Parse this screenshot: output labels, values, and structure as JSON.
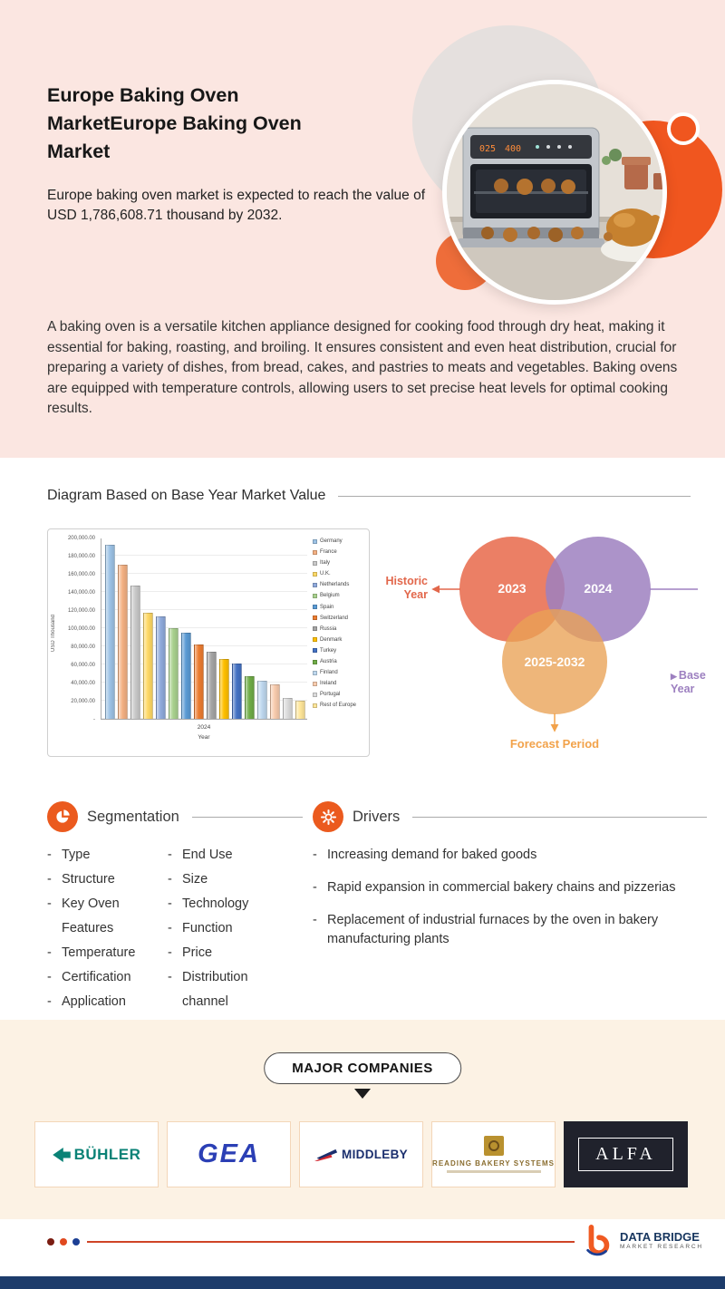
{
  "hero": {
    "title": "Europe Baking Oven MarketEurope Baking Oven Market",
    "subtitle": "Europe baking oven market is expected to reach the value of USD 1,786,608.71 thousand by 2032.",
    "description": "A baking oven is a versatile kitchen appliance designed for cooking food through dry heat, making it essential for baking, roasting, and broiling. It ensures consistent and even heat distribution, crucial for preparing a variety of dishes, from bread, cakes, and pastries to meats and vegetables. Baking ovens are equipped with temperature controls, allowing users to set precise heat levels for optimal cooking results."
  },
  "diagram": {
    "heading": "Diagram Based on Base Year Market Value"
  },
  "chart_data": {
    "type": "bar",
    "title": "",
    "ylabel": "USD Thousand",
    "xlabel": "Year",
    "x_tick": "2024",
    "ylim": [
      0,
      200000
    ],
    "ytick_labels": [
      "200,000.00",
      "180,000.00",
      "160,000.00",
      "140,000.00",
      "120,000.00",
      "100,000.00",
      "80,000.00",
      "60,000.00",
      "40,000.00",
      "20,000.00",
      "-"
    ],
    "categories": [
      "Germany",
      "France",
      "Italy",
      "U.K.",
      "Netherlands",
      "Belgium",
      "Spain",
      "Switzerland",
      "Russia",
      "Denmark",
      "Turkey",
      "Austria",
      "Finland",
      "Ireland",
      "Portugal",
      "Rest of Europe"
    ],
    "values": [
      192000,
      170000,
      147000,
      117000,
      113000,
      100000,
      95000,
      82000,
      74000,
      66000,
      61000,
      47000,
      42000,
      38000,
      23000,
      20000
    ],
    "colors": [
      "#9dc3e6",
      "#f4b183",
      "#c9c9c9",
      "#ffd966",
      "#8faadc",
      "#a9d18e",
      "#5b9bd5",
      "#ed7d31",
      "#a5a5a5",
      "#ffc000",
      "#4472c4",
      "#70ad47",
      "#bdd7ee",
      "#f8cbad",
      "#dbdbdb",
      "#ffe699"
    ],
    "legend_position": "right",
    "grid": true
  },
  "venn": {
    "historic_label": "Historic Year",
    "historic_year": "2023",
    "base_label": "Base Year",
    "base_year": "2024",
    "forecast_label": "Forecast Period",
    "forecast_period": "2025-2032",
    "historic_color": "#e8684a",
    "base_color": "#9d80c0",
    "forecast_color": "#e9a254"
  },
  "segmentation": {
    "heading": "Segmentation",
    "col1": [
      "Type",
      "Structure",
      "Key Oven Features",
      "Temperature",
      "Certification",
      "Application"
    ],
    "col2": [
      "End Use",
      "Size",
      "Technology",
      "Function",
      "Price",
      "Distribution channel"
    ]
  },
  "drivers": {
    "heading": "Drivers",
    "items": [
      "Increasing demand for baked goods",
      "Rapid expansion in commercial bakery chains and pizzerias",
      "Replacement of industrial furnaces by the oven in bakery manufacturing plants"
    ]
  },
  "companies": {
    "heading": "MAJOR COMPANIES",
    "items": [
      {
        "name": "BÜHLER"
      },
      {
        "name": "GEA"
      },
      {
        "name": "MIDDLEBY"
      },
      {
        "name": "READING BAKERY SYSTEMS"
      },
      {
        "name": "ALFA"
      }
    ]
  },
  "footer": {
    "brand_line1": "DATA BRIDGE",
    "brand_line2": "MARKET RESEARCH"
  }
}
